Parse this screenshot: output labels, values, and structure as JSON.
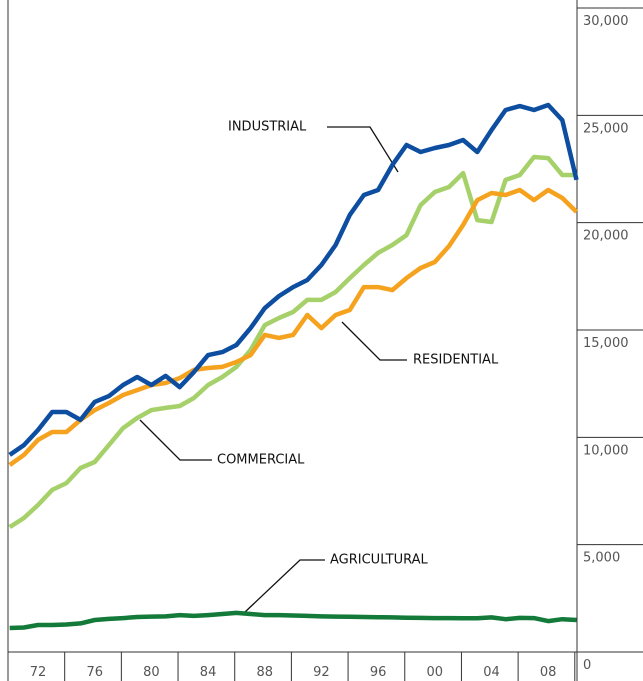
{
  "chart_data": {
    "type": "line",
    "categories": [
      null,
      null,
      "72",
      null,
      null,
      null,
      "76",
      null,
      null,
      null,
      "80",
      null,
      null,
      null,
      "84",
      null,
      null,
      null,
      "88",
      null,
      null,
      null,
      "92",
      null,
      null,
      null,
      "96",
      null,
      null,
      null,
      "00",
      null,
      null,
      null,
      "04",
      null,
      null,
      null,
      "08",
      null,
      null
    ],
    "series": [
      {
        "name": "INDUSTRIAL",
        "color": "#0d4ea0",
        "values": [
          9180,
          9640,
          10340,
          11180,
          11180,
          10810,
          11650,
          11920,
          12440,
          12810,
          12440,
          12860,
          12340,
          13040,
          13830,
          13970,
          14300,
          15090,
          16020,
          16580,
          17000,
          17330,
          18030,
          18960,
          20360,
          21290,
          21520,
          22680,
          23620,
          23290,
          23480,
          23620,
          23850,
          23290,
          24310,
          25250,
          25430,
          25250,
          25480,
          24780,
          21990
        ]
      },
      {
        "name": "RESIDENTIAL",
        "color": "#f5a21f",
        "values": [
          8710,
          9180,
          9880,
          10250,
          10250,
          10810,
          11270,
          11600,
          11970,
          12200,
          12440,
          12530,
          12760,
          13140,
          13230,
          13280,
          13510,
          13830,
          14770,
          14630,
          14770,
          15700,
          15090,
          15700,
          15930,
          17000,
          17000,
          16860,
          17420,
          17890,
          18170,
          18910,
          19890,
          21050,
          21380,
          21290,
          21520,
          21050,
          21520,
          21150,
          20500
        ]
      },
      {
        "name": "COMMERCIAL",
        "color": "#a6d16a",
        "values": [
          5820,
          6240,
          6850,
          7550,
          7870,
          8570,
          8850,
          9640,
          10430,
          10900,
          11270,
          11370,
          11460,
          11830,
          12440,
          12810,
          13280,
          14070,
          15230,
          15560,
          15840,
          16400,
          16400,
          16770,
          17420,
          18030,
          18590,
          18960,
          19420,
          20820,
          21430,
          21660,
          22310,
          20120,
          20030,
          21990,
          22220,
          23060,
          23010,
          22220,
          22220
        ]
      },
      {
        "name": "AGRICULTURAL",
        "color": "#137a3a",
        "values": [
          1120,
          1140,
          1260,
          1260,
          1280,
          1330,
          1490,
          1540,
          1580,
          1630,
          1650,
          1660,
          1720,
          1680,
          1720,
          1770,
          1820,
          1770,
          1720,
          1720,
          1700,
          1680,
          1660,
          1650,
          1640,
          1630,
          1620,
          1610,
          1600,
          1590,
          1580,
          1580,
          1570,
          1570,
          1610,
          1530,
          1590,
          1580,
          1440,
          1530,
          1490
        ]
      }
    ],
    "ylim": [
      0,
      30000
    ],
    "yticks": [
      0,
      {
        "value": 5000,
        "label": "5,000"
      },
      {
        "value": 10000,
        "label": "10,000"
      },
      {
        "value": 15000,
        "label": "15,000"
      },
      {
        "value": 20000,
        "label": "20,000"
      },
      {
        "value": 25000,
        "label": "25,000"
      },
      {
        "value": 30000,
        "label": "30,000"
      }
    ]
  }
}
